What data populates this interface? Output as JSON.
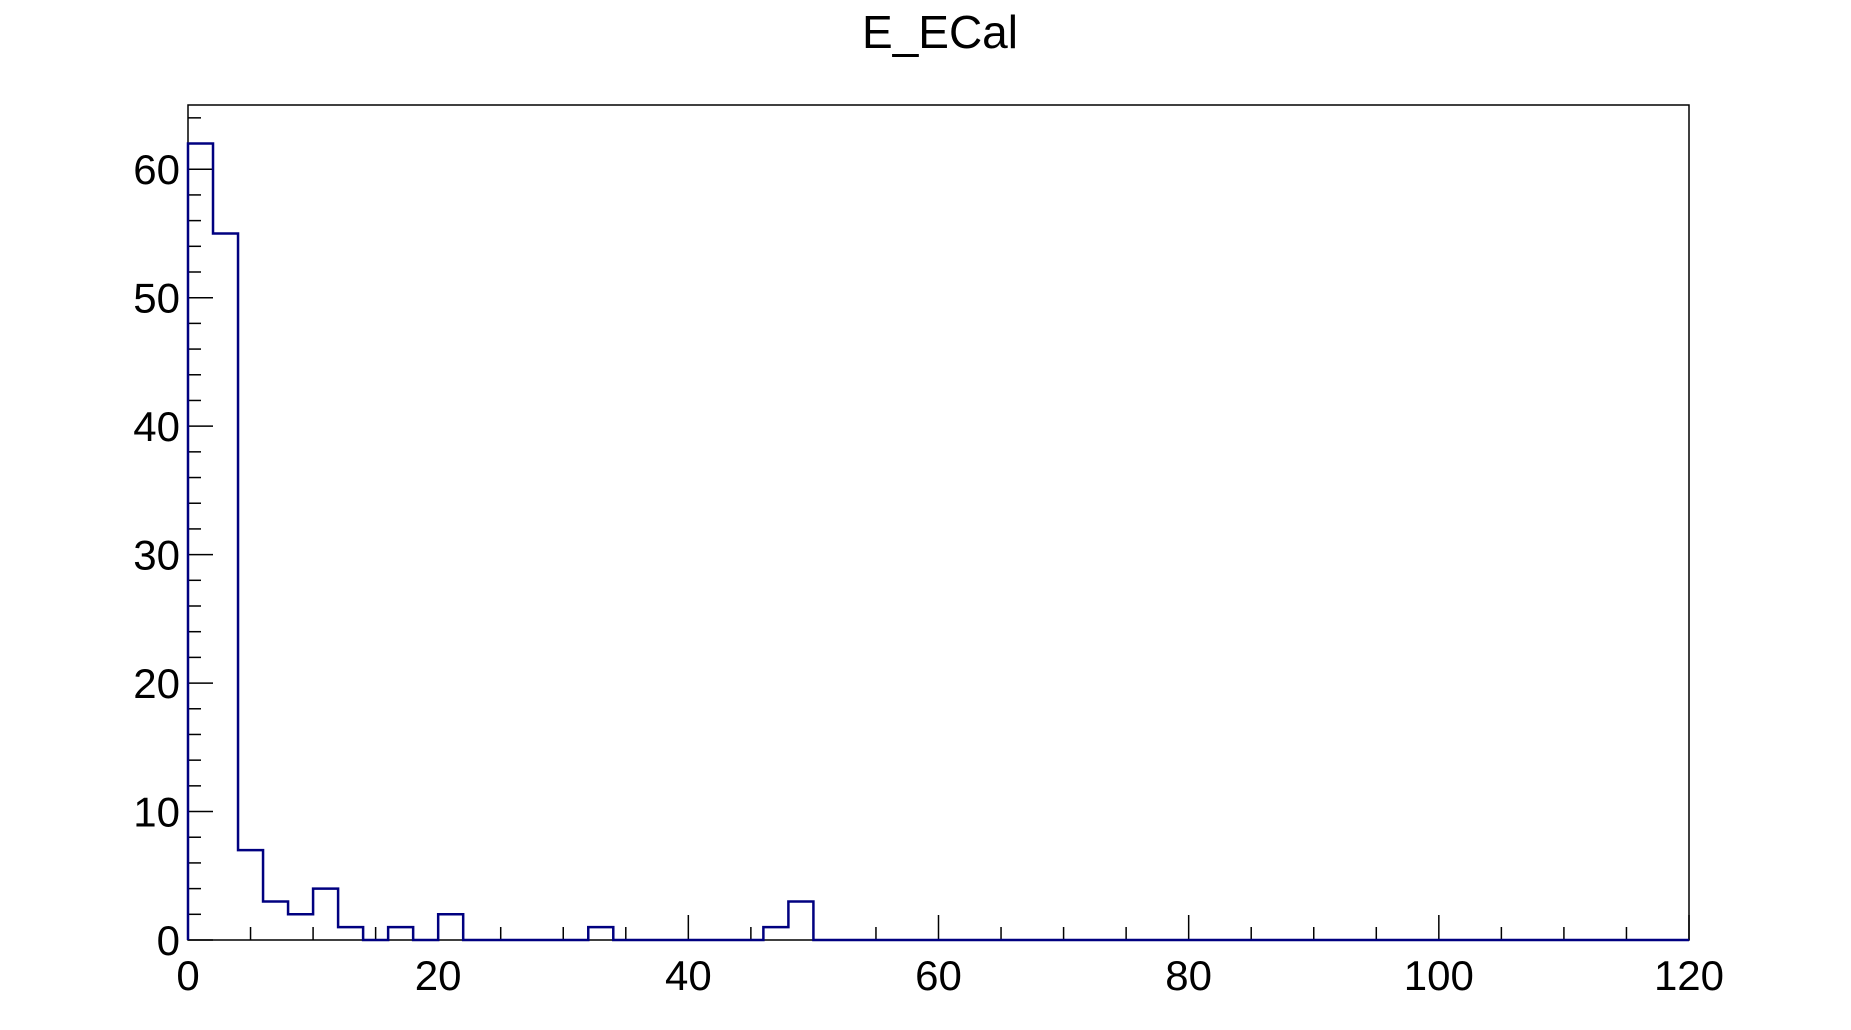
{
  "chart_data": {
    "type": "histogram",
    "title": "E_ECal",
    "xlabel": "",
    "ylabel": "",
    "xlim": [
      0,
      120
    ],
    "ylim": [
      0,
      65
    ],
    "bin_width": 2,
    "bins": [
      {
        "x0": 0,
        "x1": 2,
        "count": 62
      },
      {
        "x0": 2,
        "x1": 4,
        "count": 55
      },
      {
        "x0": 4,
        "x1": 6,
        "count": 7
      },
      {
        "x0": 6,
        "x1": 8,
        "count": 3
      },
      {
        "x0": 8,
        "x1": 10,
        "count": 2
      },
      {
        "x0": 10,
        "x1": 12,
        "count": 4
      },
      {
        "x0": 12,
        "x1": 14,
        "count": 1
      },
      {
        "x0": 14,
        "x1": 16,
        "count": 0
      },
      {
        "x0": 16,
        "x1": 18,
        "count": 1
      },
      {
        "x0": 18,
        "x1": 20,
        "count": 0
      },
      {
        "x0": 20,
        "x1": 22,
        "count": 2
      },
      {
        "x0": 22,
        "x1": 32,
        "count": 0
      },
      {
        "x0": 32,
        "x1": 34,
        "count": 1
      },
      {
        "x0": 34,
        "x1": 46,
        "count": 0
      },
      {
        "x0": 46,
        "x1": 48,
        "count": 1
      },
      {
        "x0": 48,
        "x1": 50,
        "count": 3
      },
      {
        "x0": 50,
        "x1": 120,
        "count": 0
      }
    ],
    "x_ticks": [
      0,
      20,
      40,
      60,
      80,
      100,
      120
    ],
    "x_tick_labels": [
      "0",
      "20",
      "40",
      "60",
      "80",
      "100",
      "120"
    ],
    "y_ticks": [
      0,
      10,
      20,
      30,
      40,
      50,
      60
    ],
    "y_tick_labels": [
      "0",
      "10",
      "20",
      "30",
      "40",
      "50",
      "60"
    ],
    "grid": false,
    "legend": "none",
    "line_color": "#000080",
    "axis_color": "#000000"
  }
}
